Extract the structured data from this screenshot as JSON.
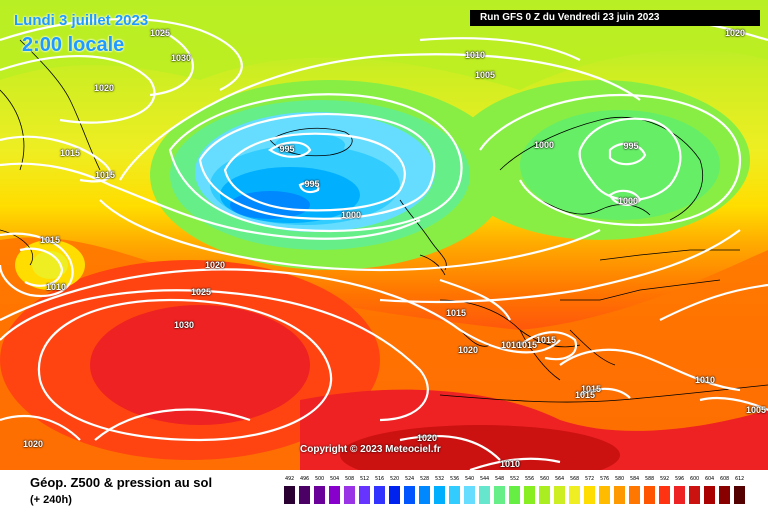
{
  "header": {
    "date": "Lundi 3 juillet 2023",
    "time": "2:00 locale",
    "run": "Run GFS 0 Z du Vendredi 23 juin 2023"
  },
  "copyright": "Copyright © 2023 Meteociel.fr",
  "footer": {
    "title": "Géop. Z500 & pression au sol",
    "subtitle": "(+ 240h)"
  },
  "isobar_labels": [
    "1025",
    "1030",
    "1020",
    "1015",
    "1015",
    "1015",
    "1010",
    "1020",
    "1025",
    "1030",
    "1020",
    "995",
    "995",
    "1000",
    "1010",
    "1005",
    "1000",
    "995",
    "1000",
    "1015",
    "1020",
    "1010",
    "1015",
    "1015",
    "1015",
    "1015",
    "1010",
    "1005",
    "1020",
    "1010",
    "1020"
  ],
  "legend": {
    "values": [
      "492",
      "496",
      "500",
      "504",
      "508",
      "512",
      "516",
      "520",
      "524",
      "528",
      "532",
      "536",
      "540",
      "544",
      "548",
      "552",
      "556",
      "560",
      "564",
      "568",
      "572",
      "576",
      "580",
      "584",
      "588",
      "592",
      "596",
      "600",
      "604",
      "608",
      "612"
    ],
    "colors": [
      "#2a0033",
      "#4b0066",
      "#6a0099",
      "#8800cc",
      "#9a33e6",
      "#6633ff",
      "#3333ff",
      "#0022ee",
      "#0055ff",
      "#0088ff",
      "#00b0ff",
      "#33ccff",
      "#66ddff",
      "#66e6cc",
      "#66ee88",
      "#66ee44",
      "#88ee22",
      "#aaee22",
      "#ccee22",
      "#eeee22",
      "#ffdd00",
      "#ffbb00",
      "#ff9900",
      "#ff7700",
      "#ff5500",
      "#ff3311",
      "#ee2222",
      "#cc1111",
      "#aa0000",
      "#880000",
      "#550000"
    ]
  }
}
